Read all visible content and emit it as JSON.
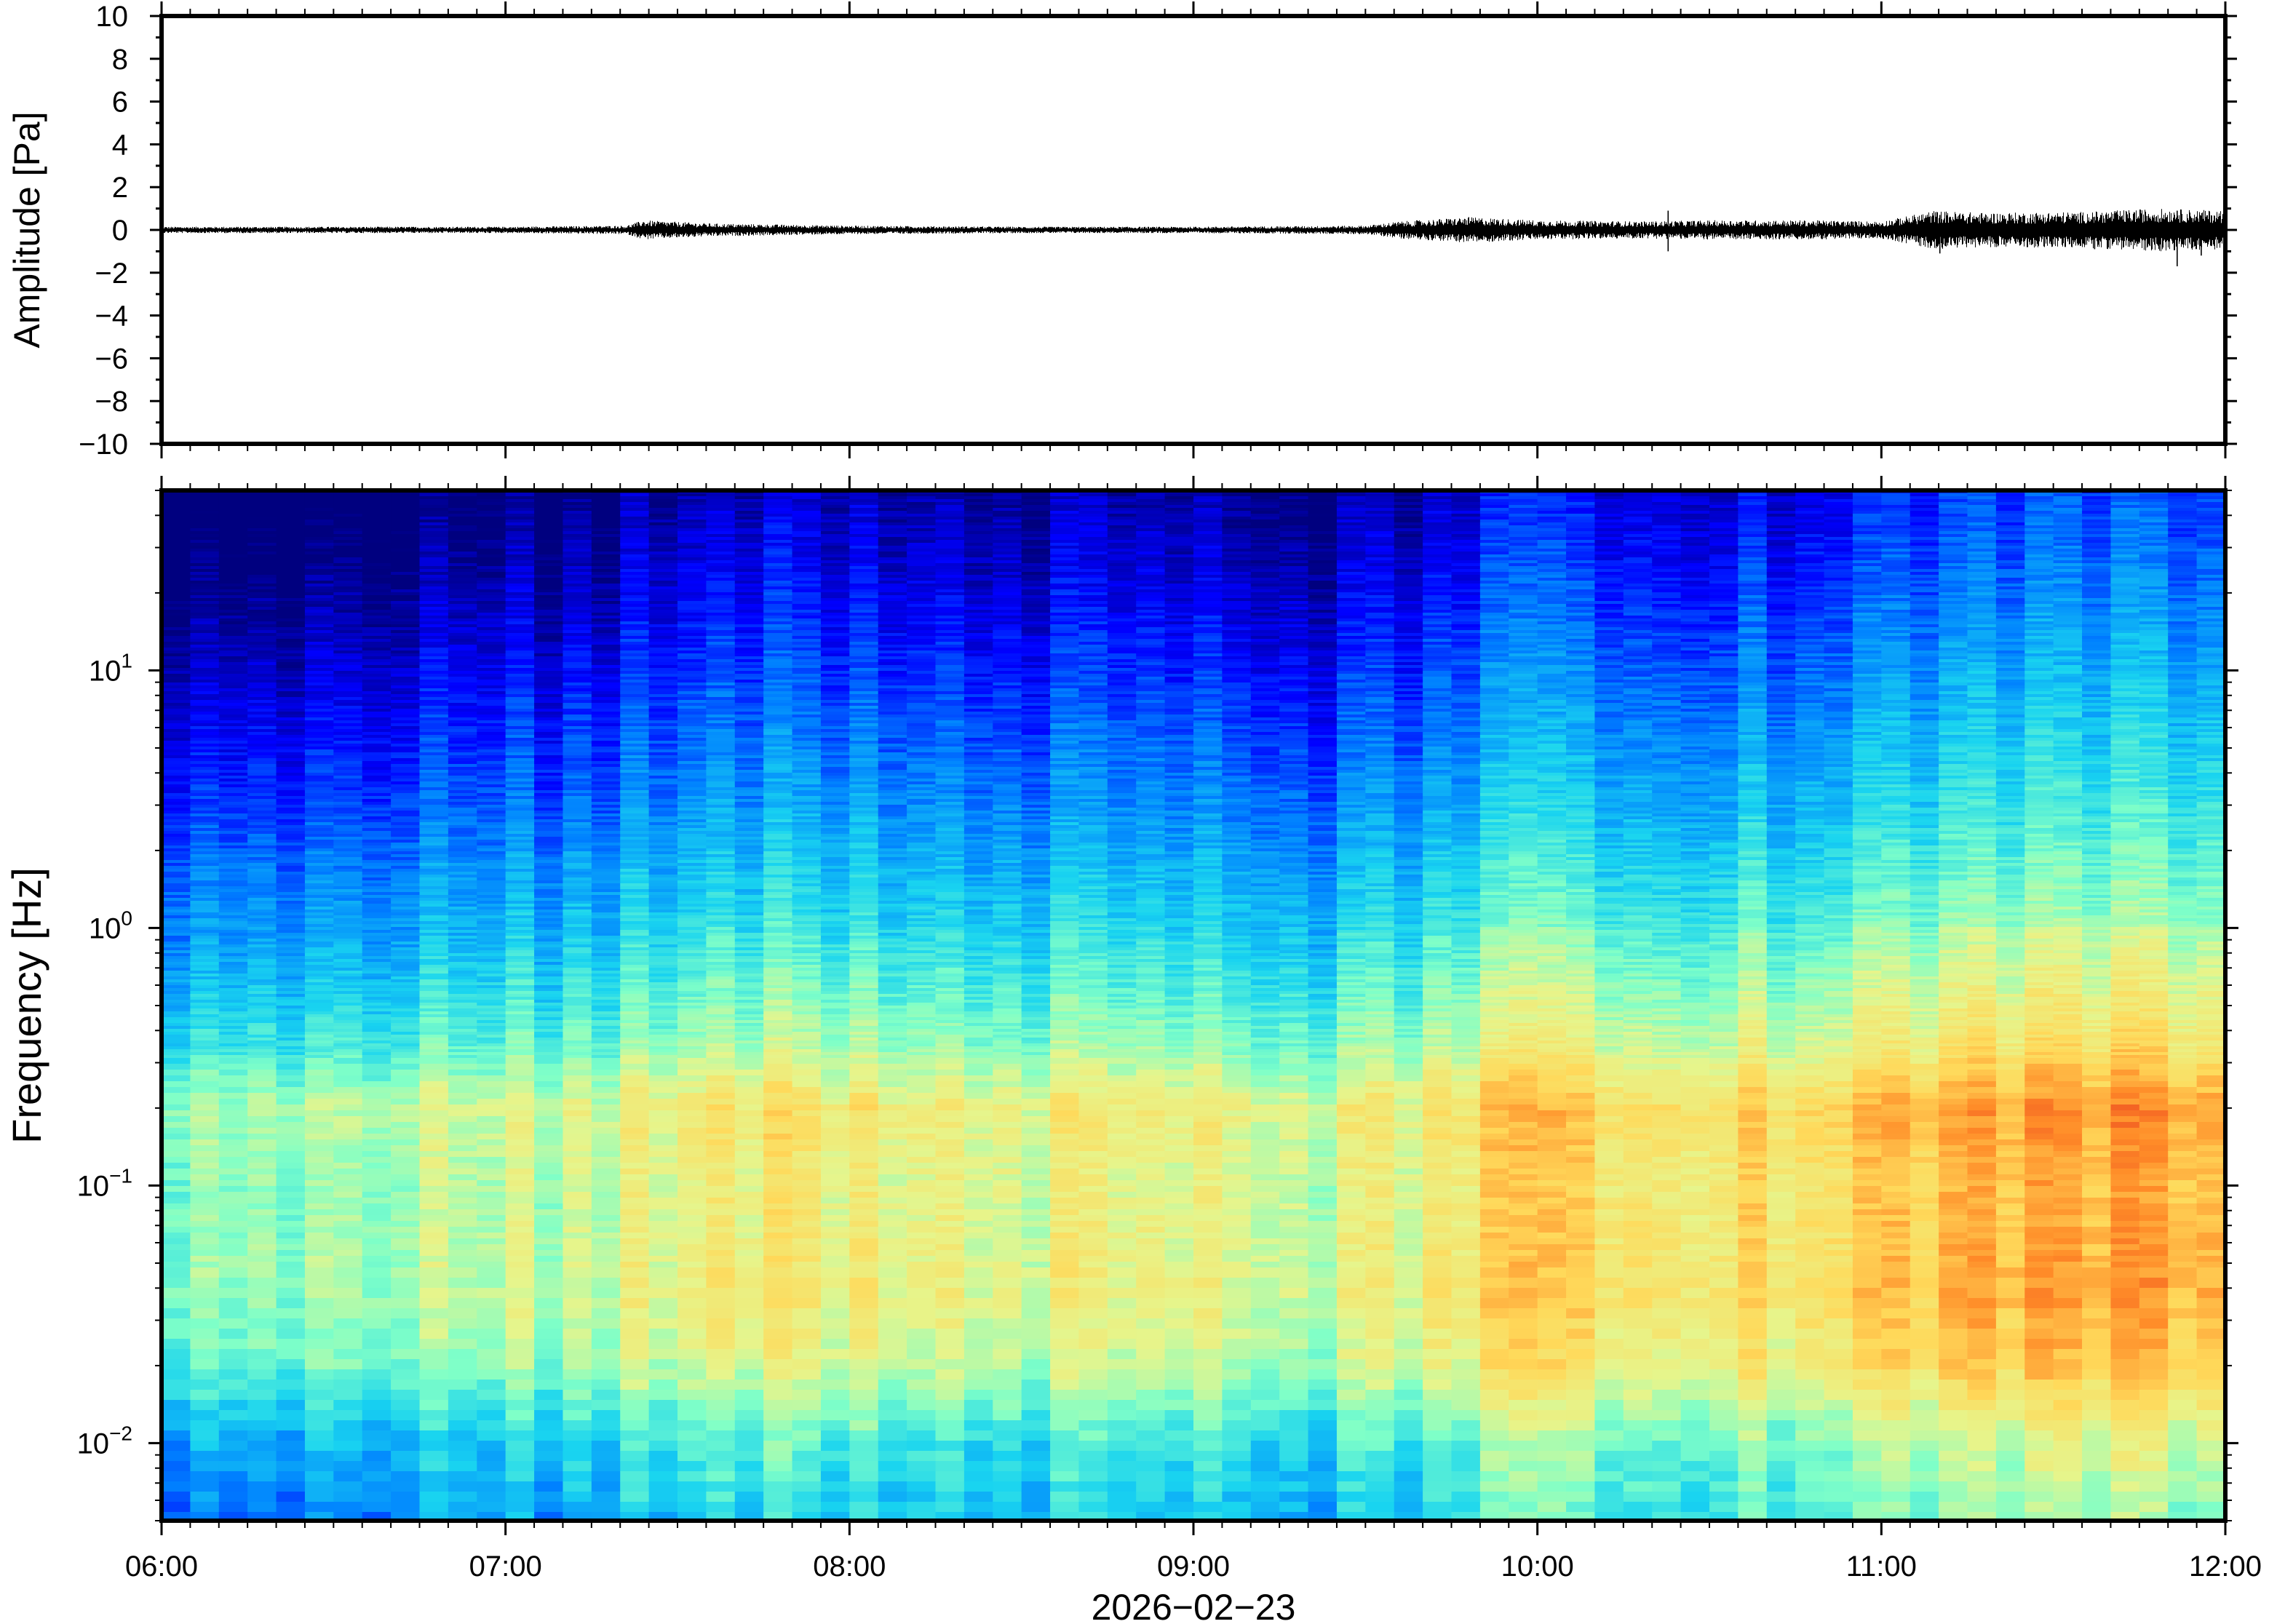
{
  "chart_data": [
    {
      "type": "line",
      "panel": "waveform",
      "ylabel": "Amplitude [Pa]",
      "ylim": [
        -10,
        10
      ],
      "yticks": [
        -10,
        -8,
        -6,
        -4,
        -2,
        0,
        2,
        4,
        6,
        8,
        10
      ],
      "ytick_labels": [
        "−10",
        "−8",
        "−6",
        "−4",
        "−2",
        "0",
        "2",
        "4",
        "6",
        "8",
        "10"
      ],
      "xlim": [
        "06:00",
        "12:00"
      ],
      "envelope": {
        "t_hours": [
          6.0,
          6.5,
          7.0,
          7.35,
          7.4,
          7.6,
          8.0,
          8.5,
          9.0,
          9.5,
          9.6,
          9.8,
          10.0,
          10.3,
          10.5,
          10.8,
          11.0,
          11.15,
          11.3,
          11.6,
          11.8,
          12.0
        ],
        "amp_pa": [
          0.15,
          0.15,
          0.15,
          0.2,
          0.45,
          0.3,
          0.2,
          0.15,
          0.15,
          0.2,
          0.4,
          0.6,
          0.45,
          0.4,
          0.45,
          0.45,
          0.4,
          0.9,
          0.8,
          0.85,
          1.0,
          0.9
        ]
      },
      "spikes": [
        {
          "t": 10.38,
          "pos": 0.9,
          "neg": -1.0
        },
        {
          "t": 11.17,
          "pos": 0.7,
          "neg": -1.1
        },
        {
          "t": 11.62,
          "pos": 0.6,
          "neg": -0.9
        },
        {
          "t": 11.86,
          "pos": 0.9,
          "neg": -1.7
        },
        {
          "t": 11.93,
          "pos": 0.6,
          "neg": -1.2
        }
      ]
    },
    {
      "type": "heatmap",
      "panel": "spectrogram",
      "ylabel": "Frequency [Hz]",
      "yscale": "log",
      "ylim": [
        0.005,
        50
      ],
      "ytick_labels": [
        {
          "base": "10",
          "exp": "1",
          "value": 10
        },
        {
          "base": "10",
          "exp": "0",
          "value": 1
        },
        {
          "base": "10",
          "exp": "−1",
          "value": 0.1
        },
        {
          "base": "10",
          "exp": "−2",
          "value": 0.01
        }
      ],
      "xlabel": "2026−02−23",
      "xtick_labels": [
        "06:00",
        "07:00",
        "08:00",
        "09:00",
        "10:00",
        "11:00",
        "12:00"
      ],
      "colormap": [
        "#00007f",
        "#0000ff",
        "#0080ff",
        "#19d4f0",
        "#7fffc8",
        "#e6f58c",
        "#ffd95a",
        "#ff8c28",
        "#e6321e"
      ],
      "power_profile": {
        "log10_f": [
          -2.3,
          -2.0,
          -1.7,
          -1.4,
          -1.0,
          -0.7,
          -0.45,
          0.0,
          0.5,
          1.0,
          1.4,
          1.7
        ],
        "level": [
          0.35,
          0.42,
          0.58,
          0.64,
          0.62,
          0.66,
          0.52,
          0.38,
          0.26,
          0.16,
          0.08,
          0.03
        ]
      },
      "activity": {
        "t_hours": [
          6.0,
          6.5,
          7.0,
          7.35,
          7.5,
          8.0,
          8.5,
          9.0,
          9.5,
          9.7,
          10.0,
          10.3,
          10.7,
          11.0,
          11.2,
          11.5,
          12.0
        ],
        "boost": [
          -0.08,
          -0.06,
          -0.05,
          -0.02,
          0.06,
          0.02,
          0.0,
          -0.02,
          -0.04,
          0.08,
          0.1,
          0.06,
          0.08,
          0.1,
          0.16,
          0.17,
          0.18
        ]
      }
    }
  ]
}
